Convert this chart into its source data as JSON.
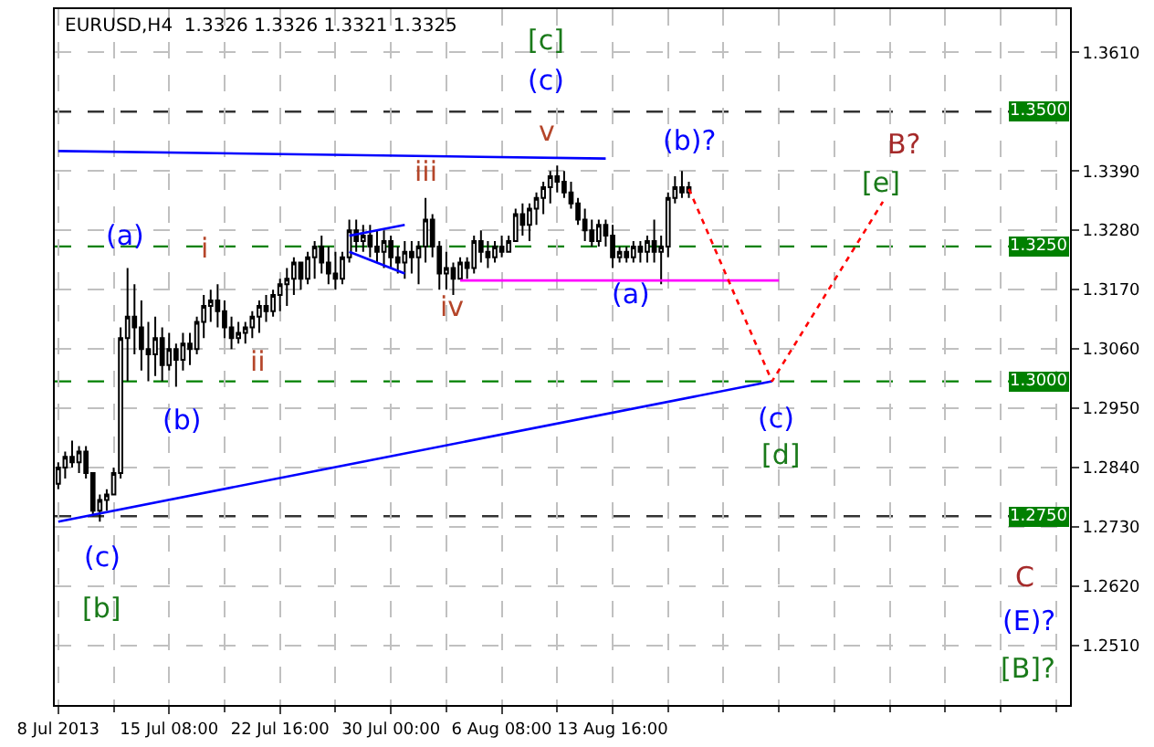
{
  "chart_data": {
    "type": "candlestick",
    "title": "EURUSD,H4  1.3326 1.3326 1.3321 1.3325",
    "color": "#000000",
    "categories": [
      "8 Jul 2013",
      null,
      null,
      null,
      null,
      null,
      null,
      null,
      null,
      null,
      null,
      null,
      null,
      null,
      null,
      null,
      "15 Jul 08:00",
      null,
      null,
      null,
      null,
      null,
      null,
      null,
      null,
      null,
      null,
      null,
      null,
      null,
      null,
      null,
      "22 Jul 16:00",
      null,
      null,
      null,
      null,
      null,
      null,
      null,
      null,
      null,
      null,
      null,
      null,
      null,
      null,
      null,
      "30 Jul 00:00",
      null,
      null,
      null,
      null,
      null,
      null,
      null,
      null,
      null,
      null,
      null,
      null,
      null,
      null,
      null,
      "6 Aug 08:00",
      null,
      null,
      null,
      null,
      null,
      null,
      null,
      null,
      null,
      null,
      null,
      null,
      null,
      null,
      null,
      "13 Aug 16:00",
      null,
      null,
      null,
      null,
      null,
      null,
      null,
      null,
      null,
      null,
      null,
      null,
      null,
      null,
      null,
      null,
      null,
      null,
      null,
      null,
      null,
      null,
      null,
      null,
      null,
      null,
      null,
      null,
      null,
      null,
      null,
      null,
      null,
      null,
      null,
      null,
      null,
      null,
      null,
      null,
      null,
      null,
      null,
      null,
      null,
      null,
      null,
      null,
      null,
      null,
      null,
      null,
      null,
      null,
      null,
      null,
      null,
      null,
      null,
      null,
      null,
      null,
      null,
      null,
      null,
      null
    ],
    "ohlc": [
      [
        1.281,
        1.285,
        1.28,
        1.284
      ],
      [
        1.284,
        1.287,
        1.282,
        1.286
      ],
      [
        1.286,
        1.289,
        1.284,
        1.285
      ],
      [
        1.285,
        1.288,
        1.283,
        1.287
      ],
      [
        1.287,
        1.288,
        1.282,
        1.283
      ],
      [
        1.283,
        1.283,
        1.275,
        1.276
      ],
      [
        1.276,
        1.279,
        1.274,
        1.278
      ],
      [
        1.278,
        1.28,
        1.276,
        1.279
      ],
      [
        1.279,
        1.284,
        1.279,
        1.283
      ],
      [
        1.283,
        1.31,
        1.282,
        1.308
      ],
      [
        1.308,
        1.321,
        1.3,
        1.312
      ],
      [
        1.312,
        1.318,
        1.305,
        1.31
      ],
      [
        1.31,
        1.315,
        1.302,
        1.306
      ],
      [
        1.306,
        1.311,
        1.3,
        1.305
      ],
      [
        1.305,
        1.312,
        1.301,
        1.308
      ],
      [
        1.308,
        1.31,
        1.3,
        1.303
      ],
      [
        1.303,
        1.309,
        1.302,
        1.306
      ],
      [
        1.306,
        1.307,
        1.299,
        1.304
      ],
      [
        1.304,
        1.309,
        1.302,
        1.307
      ],
      [
        1.307,
        1.309,
        1.303,
        1.306
      ],
      [
        1.306,
        1.312,
        1.305,
        1.311
      ],
      [
        1.311,
        1.316,
        1.308,
        1.314
      ],
      [
        1.314,
        1.317,
        1.311,
        1.315
      ],
      [
        1.315,
        1.318,
        1.31,
        1.313
      ],
      [
        1.313,
        1.315,
        1.308,
        1.31
      ],
      [
        1.31,
        1.312,
        1.306,
        1.308
      ],
      [
        1.308,
        1.311,
        1.307,
        1.309
      ],
      [
        1.309,
        1.311,
        1.307,
        1.31
      ],
      [
        1.31,
        1.313,
        1.308,
        1.312
      ],
      [
        1.312,
        1.315,
        1.309,
        1.314
      ],
      [
        1.314,
        1.316,
        1.311,
        1.313
      ],
      [
        1.313,
        1.317,
        1.312,
        1.316
      ],
      [
        1.316,
        1.319,
        1.313,
        1.318
      ],
      [
        1.318,
        1.321,
        1.314,
        1.319
      ],
      [
        1.319,
        1.323,
        1.316,
        1.322
      ],
      [
        1.322,
        1.322,
        1.317,
        1.319
      ],
      [
        1.319,
        1.324,
        1.318,
        1.323
      ],
      [
        1.323,
        1.326,
        1.319,
        1.325
      ],
      [
        1.325,
        1.327,
        1.32,
        1.322
      ],
      [
        1.322,
        1.325,
        1.318,
        1.32
      ],
      [
        1.32,
        1.324,
        1.317,
        1.319
      ],
      [
        1.319,
        1.324,
        1.318,
        1.323
      ],
      [
        1.323,
        1.33,
        1.322,
        1.328
      ],
      [
        1.328,
        1.33,
        1.324,
        1.326
      ],
      [
        1.326,
        1.329,
        1.324,
        1.327
      ],
      [
        1.327,
        1.329,
        1.323,
        1.325
      ],
      [
        1.325,
        1.328,
        1.322,
        1.324
      ],
      [
        1.324,
        1.328,
        1.321,
        1.326
      ],
      [
        1.326,
        1.327,
        1.321,
        1.323
      ],
      [
        1.323,
        1.325,
        1.32,
        1.322
      ],
      [
        1.322,
        1.326,
        1.319,
        1.324
      ],
      [
        1.324,
        1.326,
        1.32,
        1.323
      ],
      [
        1.323,
        1.326,
        1.318,
        1.325
      ],
      [
        1.325,
        1.334,
        1.322,
        1.33
      ],
      [
        1.33,
        1.331,
        1.323,
        1.325
      ],
      [
        1.325,
        1.326,
        1.317,
        1.32
      ],
      [
        1.32,
        1.324,
        1.317,
        1.321
      ],
      [
        1.321,
        1.322,
        1.316,
        1.319
      ],
      [
        1.319,
        1.323,
        1.319,
        1.322
      ],
      [
        1.322,
        1.323,
        1.319,
        1.321
      ],
      [
        1.321,
        1.327,
        1.32,
        1.326
      ],
      [
        1.326,
        1.328,
        1.322,
        1.324
      ],
      [
        1.324,
        1.326,
        1.321,
        1.323
      ],
      [
        1.323,
        1.326,
        1.322,
        1.325
      ],
      [
        1.325,
        1.327,
        1.323,
        1.324
      ],
      [
        1.324,
        1.327,
        1.324,
        1.326
      ],
      [
        1.326,
        1.332,
        1.326,
        1.331
      ],
      [
        1.331,
        1.333,
        1.327,
        1.329
      ],
      [
        1.329,
        1.333,
        1.326,
        1.332
      ],
      [
        1.332,
        1.335,
        1.329,
        1.334
      ],
      [
        1.334,
        1.337,
        1.331,
        1.336
      ],
      [
        1.336,
        1.339,
        1.333,
        1.338
      ],
      [
        1.338,
        1.34,
        1.335,
        1.337
      ],
      [
        1.337,
        1.339,
        1.334,
        1.335
      ],
      [
        1.335,
        1.337,
        1.332,
        1.333
      ],
      [
        1.333,
        1.334,
        1.329,
        1.33
      ],
      [
        1.33,
        1.332,
        1.326,
        1.328
      ],
      [
        1.328,
        1.33,
        1.325,
        1.326
      ],
      [
        1.326,
        1.33,
        1.325,
        1.329
      ],
      [
        1.329,
        1.33,
        1.325,
        1.327
      ],
      [
        1.327,
        1.329,
        1.321,
        1.323
      ],
      [
        1.323,
        1.325,
        1.322,
        1.324
      ],
      [
        1.324,
        1.325,
        1.322,
        1.323
      ],
      [
        1.323,
        1.326,
        1.322,
        1.325
      ],
      [
        1.325,
        1.326,
        1.322,
        1.324
      ],
      [
        1.324,
        1.327,
        1.322,
        1.326
      ],
      [
        1.326,
        1.33,
        1.322,
        1.324
      ],
      [
        1.324,
        1.327,
        1.318,
        1.325
      ],
      [
        1.325,
        1.335,
        1.323,
        1.334
      ],
      [
        1.334,
        1.338,
        1.333,
        1.336
      ],
      [
        1.336,
        1.339,
        1.334,
        1.335
      ],
      [
        1.335,
        1.337,
        1.334,
        1.336
      ],
      null,
      null,
      null,
      null,
      null,
      null,
      null,
      null,
      null,
      null,
      null,
      null,
      null,
      null,
      null,
      null,
      null,
      null,
      null,
      null,
      null,
      null,
      null,
      null,
      null,
      null,
      null,
      null,
      null,
      null,
      null,
      null,
      null,
      null,
      null,
      null,
      null,
      null,
      null,
      null,
      null,
      null,
      null,
      null,
      null,
      null,
      null,
      null,
      null,
      null,
      null,
      null,
      null,
      null,
      null
    ],
    "series": [
      {
        "type": "line",
        "color": "#0000ff",
        "line_style": "solid",
        "values": [
          1.3427,
          null,
          null,
          null,
          null,
          null,
          null,
          null,
          null,
          null,
          null,
          null,
          null,
          null,
          null,
          null,
          null,
          null,
          null,
          null,
          null,
          null,
          null,
          null,
          null,
          null,
          null,
          null,
          null,
          null,
          null,
          null,
          null,
          null,
          null,
          null,
          null,
          null,
          null,
          null,
          null,
          null,
          null,
          null,
          null,
          null,
          null,
          null,
          null,
          null,
          null,
          null,
          null,
          null,
          null,
          null,
          null,
          null,
          null,
          null,
          null,
          null,
          null,
          null,
          null,
          null,
          null,
          null,
          null,
          null,
          null,
          null,
          null,
          null,
          null,
          null,
          null,
          null,
          null,
          1.3413,
          null,
          null,
          null,
          null,
          null,
          null,
          null,
          null,
          null,
          null,
          null,
          null,
          null,
          null,
          null,
          null,
          null,
          null,
          null,
          null,
          null,
          null,
          null,
          null,
          null,
          null,
          null,
          null,
          null,
          null,
          null,
          null,
          null,
          null,
          null,
          null,
          null,
          null,
          null,
          null,
          null,
          null,
          null,
          null,
          null,
          null,
          null,
          null,
          null,
          null,
          null,
          null,
          null,
          null,
          null,
          null,
          null,
          null,
          null,
          null,
          null,
          null,
          null,
          null,
          null,
          null,
          null
        ]
      },
      {
        "type": "line",
        "color": "#0000ff",
        "line_style": "solid",
        "values": [
          1.274,
          null,
          null,
          null,
          null,
          null,
          null,
          null,
          null,
          null,
          null,
          null,
          null,
          null,
          null,
          null,
          null,
          null,
          null,
          null,
          null,
          null,
          null,
          null,
          null,
          null,
          null,
          null,
          null,
          null,
          null,
          null,
          null,
          null,
          null,
          null,
          null,
          null,
          null,
          null,
          null,
          null,
          null,
          null,
          null,
          null,
          null,
          null,
          null,
          null,
          null,
          null,
          null,
          null,
          null,
          null,
          null,
          null,
          null,
          null,
          null,
          null,
          null,
          null,
          null,
          null,
          null,
          null,
          null,
          null,
          null,
          null,
          null,
          null,
          null,
          null,
          null,
          null,
          null,
          null,
          null,
          null,
          null,
          null,
          null,
          null,
          null,
          null,
          null,
          null,
          null,
          null,
          null,
          null,
          null,
          null,
          null,
          null,
          null,
          null,
          null,
          null,
          null,
          1.3,
          null,
          null,
          null,
          null,
          null,
          null,
          null,
          null,
          null,
          null,
          null,
          null,
          null,
          null,
          null,
          null,
          null,
          null,
          null,
          null,
          null,
          null,
          null,
          null,
          null,
          null,
          null,
          null,
          null,
          null,
          null,
          null,
          null,
          null,
          null,
          null,
          null,
          null,
          null,
          null,
          null,
          null,
          null
        ]
      },
      {
        "type": "line",
        "color": "#0000ff",
        "line_style": "solid",
        "values": [
          null,
          null,
          null,
          null,
          null,
          null,
          null,
          null,
          null,
          null,
          null,
          null,
          null,
          null,
          null,
          null,
          null,
          null,
          null,
          null,
          null,
          null,
          null,
          null,
          null,
          null,
          null,
          null,
          null,
          null,
          null,
          null,
          null,
          null,
          null,
          null,
          null,
          null,
          null,
          null,
          null,
          null,
          1.327,
          null,
          null,
          null,
          null,
          null,
          null,
          null,
          1.329,
          null,
          null,
          null,
          null,
          null,
          null,
          null,
          null,
          null,
          null,
          null,
          null,
          null,
          null,
          null,
          null,
          null,
          null,
          null,
          null,
          null,
          null,
          null,
          null,
          null,
          null,
          null,
          null,
          null,
          null,
          null,
          null,
          null,
          null,
          null,
          null,
          null,
          null,
          null,
          null,
          null,
          null,
          null,
          null,
          null,
          null,
          null,
          null,
          null,
          null,
          null,
          null,
          null,
          null,
          null,
          null,
          null,
          null,
          null,
          null,
          null,
          null,
          null,
          null,
          null,
          null,
          null,
          null,
          null,
          null,
          null,
          null,
          null,
          null,
          null,
          null,
          null,
          null,
          null,
          null,
          null,
          null,
          null,
          null,
          null,
          null,
          null,
          null,
          null,
          null,
          null,
          null,
          null,
          null,
          null,
          null
        ]
      },
      {
        "type": "line",
        "color": "#0000ff",
        "line_style": "solid",
        "values": [
          null,
          null,
          null,
          null,
          null,
          null,
          null,
          null,
          null,
          null,
          null,
          null,
          null,
          null,
          null,
          null,
          null,
          null,
          null,
          null,
          null,
          null,
          null,
          null,
          null,
          null,
          null,
          null,
          null,
          null,
          null,
          null,
          null,
          null,
          null,
          null,
          null,
          null,
          null,
          null,
          null,
          null,
          1.324,
          null,
          null,
          null,
          null,
          null,
          null,
          null,
          1.32,
          null,
          null,
          null,
          null,
          null,
          null,
          null,
          null,
          null,
          null,
          null,
          null,
          null,
          null,
          null,
          null,
          null,
          null,
          null,
          null,
          null,
          null,
          null,
          null,
          null,
          null,
          null,
          null,
          null,
          null,
          null,
          null,
          null,
          null,
          null,
          null,
          null,
          null,
          null,
          null,
          null,
          null,
          null,
          null,
          null,
          null,
          null,
          null,
          null,
          null,
          null,
          null,
          null,
          null,
          null,
          null,
          null,
          null,
          null,
          null,
          null,
          null,
          null,
          null,
          null,
          null,
          null,
          null,
          null,
          null,
          null,
          null,
          null,
          null,
          null,
          null,
          null,
          null,
          null,
          null,
          null,
          null,
          null,
          null,
          null,
          null,
          null,
          null,
          null,
          null,
          null,
          null,
          null,
          null,
          null,
          null
        ]
      },
      {
        "type": "line",
        "color": "#ff00ff",
        "line_style": "solid",
        "values": [
          null,
          null,
          null,
          null,
          null,
          null,
          null,
          null,
          null,
          null,
          null,
          null,
          null,
          null,
          null,
          null,
          null,
          null,
          null,
          null,
          null,
          null,
          null,
          null,
          null,
          null,
          null,
          null,
          null,
          null,
          null,
          null,
          null,
          null,
          null,
          null,
          null,
          null,
          null,
          null,
          null,
          null,
          null,
          null,
          null,
          null,
          null,
          null,
          null,
          null,
          null,
          null,
          null,
          null,
          null,
          null,
          null,
          null,
          1.3187,
          null,
          null,
          null,
          null,
          null,
          null,
          null,
          null,
          null,
          null,
          null,
          null,
          null,
          null,
          null,
          null,
          null,
          null,
          null,
          null,
          null,
          null,
          null,
          null,
          null,
          null,
          null,
          null,
          null,
          null,
          null,
          null,
          null,
          null,
          null,
          null,
          null,
          null,
          null,
          null,
          null,
          null,
          null,
          null,
          null,
          1.3187,
          null,
          null,
          null,
          null,
          null,
          null,
          null,
          null,
          null,
          null,
          null,
          null,
          null,
          null,
          null,
          null,
          null,
          null,
          null,
          null,
          null,
          null,
          null,
          null,
          null,
          null,
          null,
          null,
          null,
          null,
          null,
          null,
          null,
          null,
          null,
          null,
          null,
          null,
          null,
          null,
          null,
          null
        ]
      },
      {
        "type": "line",
        "color": "#ff0000",
        "line_style": "dotted",
        "values": [
          null,
          null,
          null,
          null,
          null,
          null,
          null,
          null,
          null,
          null,
          null,
          null,
          null,
          null,
          null,
          null,
          null,
          null,
          null,
          null,
          null,
          null,
          null,
          null,
          null,
          null,
          null,
          null,
          null,
          null,
          null,
          null,
          null,
          null,
          null,
          null,
          null,
          null,
          null,
          null,
          null,
          null,
          null,
          null,
          null,
          null,
          null,
          null,
          null,
          null,
          null,
          null,
          null,
          null,
          null,
          null,
          null,
          null,
          null,
          null,
          null,
          null,
          null,
          null,
          null,
          null,
          null,
          null,
          null,
          null,
          null,
          null,
          null,
          null,
          null,
          null,
          null,
          null,
          null,
          null,
          null,
          null,
          null,
          null,
          null,
          null,
          null,
          null,
          null,
          null,
          null,
          1.3357,
          null,
          null,
          null,
          null,
          null,
          null,
          null,
          null,
          null,
          null,
          null,
          1.3,
          null,
          null,
          null,
          null,
          null,
          null,
          null,
          null,
          null,
          null,
          null,
          null,
          null,
          null,
          null,
          1.3333,
          null,
          null,
          null,
          null,
          null,
          null,
          null,
          null,
          null,
          null,
          null,
          null,
          null,
          null,
          null,
          null,
          null,
          null,
          null,
          null,
          null,
          null,
          null,
          null,
          null,
          null,
          null
        ]
      }
    ],
    "ylim": [
      1.24,
      1.369
    ],
    "yticks": [
      {
        "value": 1.361,
        "label": "1.3610"
      },
      {
        "value": 1.339,
        "label": "1.3390"
      },
      {
        "value": 1.328,
        "label": "1.3280"
      },
      {
        "value": 1.317,
        "label": "1.3170"
      },
      {
        "value": 1.306,
        "label": "1.3060"
      },
      {
        "value": 1.295,
        "label": "1.2950"
      },
      {
        "value": 1.284,
        "label": "1.2840"
      },
      {
        "value": 1.273,
        "label": "1.2730"
      },
      {
        "value": 1.262,
        "label": "1.2620"
      },
      {
        "value": 1.251,
        "label": "1.2510"
      }
    ],
    "grid": true,
    "ref_lines": [
      {
        "axis": "y",
        "value": 1.35,
        "label": "1.3500",
        "color": "#333333",
        "line_style": "dashed"
      },
      {
        "axis": "y",
        "value": 1.325,
        "label": "1.3250",
        "color": "#008000",
        "line_style": "dashed"
      },
      {
        "axis": "y",
        "value": 1.3,
        "label": "1.3000",
        "color": "#008000",
        "line_style": "dashed"
      },
      {
        "axis": "y",
        "value": 1.275,
        "label": "1.2750",
        "color": "#333333",
        "line_style": "dashed"
      }
    ],
    "annotations": [
      "(a)",
      "i",
      "ii",
      "(b)",
      "(c)",
      "[b]",
      "iii",
      "iv",
      "v",
      "[c]",
      "(c)",
      "(a)",
      "(b)?",
      "B?",
      "[e]",
      "(c)",
      "[d]",
      "C",
      "(E)?",
      "[B]?"
    ]
  }
}
